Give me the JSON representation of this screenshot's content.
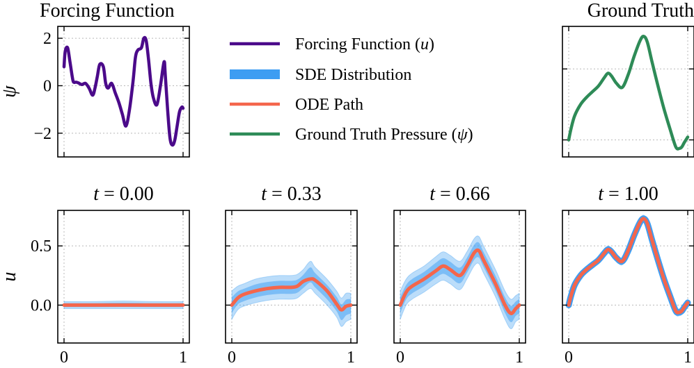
{
  "colors": {
    "forcing": "#4b0a8a",
    "sde": "#3d9df2",
    "ode": "#f4664c",
    "ground_truth": "#2e8b57"
  },
  "chart_data": {
    "type": "line",
    "legend": {
      "placement": "top-center",
      "entries": [
        {
          "label": "Forcing Function (u)",
          "color": "#4b0a8a"
        },
        {
          "label": "SDE Distribution",
          "color": "#3d9df2"
        },
        {
          "label": "ODE Path",
          "color": "#f4664c"
        },
        {
          "label": "Ground Truth Pressure (ψ)",
          "color": "#2e8b57"
        }
      ]
    },
    "panels": [
      {
        "id": "forcing",
        "title": "Forcing Function",
        "ylabel": "ψ",
        "xlim": [
          0,
          1
        ],
        "ylim": [
          -3,
          2.5
        ],
        "yticks": [
          2,
          0,
          -2
        ],
        "ytick_labels": [
          "2",
          "0",
          "−2"
        ],
        "xticks": [
          0,
          1
        ],
        "show_xtick_labels": false,
        "grid": true,
        "series": [
          {
            "kind": "line",
            "x": [
              0,
              0.01,
              0.03,
              0.05,
              0.07,
              0.08,
              0.1,
              0.12,
              0.15,
              0.18,
              0.21,
              0.24,
              0.26,
              0.28,
              0.3,
              0.33,
              0.35,
              0.37,
              0.4,
              0.43,
              0.46,
              0.49,
              0.52,
              0.55,
              0.58,
              0.6,
              0.62,
              0.65,
              0.67,
              0.69,
              0.71,
              0.73,
              0.75,
              0.78,
              0.81,
              0.84,
              0.85,
              0.87,
              0.89,
              0.91,
              0.93,
              0.95,
              0.97,
              0.99,
              1
            ],
            "y": [
              0.8,
              1.45,
              1.6,
              1.0,
              0.35,
              0.15,
              0.15,
              0.12,
              0.05,
              0.1,
              -0.1,
              -0.4,
              -0.1,
              0.4,
              0.9,
              0.8,
              0.1,
              -0.1,
              0.1,
              -0.3,
              -0.7,
              -1.2,
              -1.7,
              -1.0,
              0.2,
              1.2,
              1.5,
              1.6,
              2.0,
              1.9,
              1.1,
              0.1,
              -0.5,
              -0.8,
              0.0,
              1.0,
              0.5,
              -1.0,
              -2.2,
              -2.5,
              -2.3,
              -1.7,
              -1.1,
              -0.9,
              -0.95
            ]
          }
        ]
      },
      {
        "id": "ground_truth",
        "title": "Ground Truth",
        "ylabel": "",
        "xlim": [
          0,
          1
        ],
        "ylim": [
          -0.12,
          0.8
        ],
        "yticks": [
          0,
          0.5
        ],
        "ytick_labels": [],
        "xticks": [
          0,
          1
        ],
        "show_xtick_labels": false,
        "grid": true,
        "series": [
          {
            "kind": "line",
            "x": [
              0,
              0.02,
              0.05,
              0.1,
              0.15,
              0.2,
              0.25,
              0.3,
              0.33,
              0.36,
              0.4,
              0.45,
              0.5,
              0.55,
              0.6,
              0.63,
              0.66,
              0.7,
              0.75,
              0.8,
              0.85,
              0.9,
              0.93,
              0.95,
              0.97,
              1
            ],
            "y": [
              0.0,
              0.08,
              0.17,
              0.25,
              0.3,
              0.34,
              0.38,
              0.44,
              0.47,
              0.45,
              0.4,
              0.37,
              0.46,
              0.59,
              0.7,
              0.73,
              0.69,
              0.55,
              0.38,
              0.22,
              0.08,
              -0.05,
              -0.06,
              -0.05,
              -0.02,
              0.02
            ]
          }
        ]
      },
      {
        "id": "t0",
        "title": "t = 0.00",
        "ylabel": "u",
        "xlim": [
          0,
          1
        ],
        "ylim": [
          -0.32,
          0.8
        ],
        "yticks": [
          0,
          0.5
        ],
        "ytick_labels": [
          "0.0",
          "0.5"
        ],
        "xticks": [
          0,
          1
        ],
        "xtick_labels": [
          "0",
          "1"
        ],
        "grid": true,
        "series": [
          {
            "kind": "band",
            "x": [
              0,
              0.25,
              0.5,
              0.75,
              1
            ],
            "upper": [
              0.03,
              0.03,
              0.035,
              0.03,
              0.03
            ],
            "lower": [
              -0.03,
              -0.03,
              -0.03,
              -0.03,
              -0.03
            ]
          },
          {
            "kind": "line",
            "x": [
              0,
              0.25,
              0.5,
              0.75,
              1
            ],
            "y": [
              0.0,
              0.0,
              0.0,
              0.0,
              0.0
            ]
          }
        ]
      },
      {
        "id": "t1",
        "title": "t = 0.33",
        "ylabel": "",
        "xlim": [
          0,
          1
        ],
        "ylim": [
          -0.32,
          0.8
        ],
        "yticks": [
          0,
          0.5
        ],
        "ytick_labels": [],
        "xticks": [
          0,
          1
        ],
        "xtick_labels": [
          "0",
          "1"
        ],
        "grid": true,
        "series": [
          {
            "kind": "band",
            "x": [
              0,
              0.05,
              0.1,
              0.2,
              0.3,
              0.4,
              0.5,
              0.55,
              0.6,
              0.66,
              0.7,
              0.8,
              0.88,
              0.92,
              0.96,
              1
            ],
            "upper": [
              0.12,
              0.16,
              0.18,
              0.22,
              0.24,
              0.25,
              0.25,
              0.26,
              0.3,
              0.37,
              0.32,
              0.22,
              0.12,
              0.06,
              0.1,
              0.1
            ],
            "lower": [
              -0.12,
              -0.04,
              -0.01,
              0.02,
              0.04,
              0.05,
              0.05,
              0.06,
              0.1,
              0.14,
              0.1,
              0.0,
              -0.1,
              -0.18,
              -0.14,
              -0.12
            ]
          },
          {
            "kind": "line",
            "x": [
              0,
              0.05,
              0.1,
              0.2,
              0.3,
              0.4,
              0.5,
              0.55,
              0.6,
              0.66,
              0.7,
              0.8,
              0.88,
              0.92,
              0.96,
              1
            ],
            "y": [
              0.0,
              0.06,
              0.09,
              0.12,
              0.14,
              0.15,
              0.15,
              0.16,
              0.2,
              0.22,
              0.21,
              0.12,
              0.01,
              -0.04,
              -0.01,
              0.0
            ]
          }
        ]
      },
      {
        "id": "t2",
        "title": "t = 0.66",
        "ylabel": "",
        "xlim": [
          0,
          1
        ],
        "ylim": [
          -0.32,
          0.8
        ],
        "yticks": [
          0,
          0.5
        ],
        "ytick_labels": [],
        "xticks": [
          0,
          1
        ],
        "xtick_labels": [
          "0",
          "1"
        ],
        "grid": true,
        "series": [
          {
            "kind": "band",
            "x": [
              0,
              0.05,
              0.1,
              0.2,
              0.3,
              0.36,
              0.42,
              0.5,
              0.56,
              0.62,
              0.66,
              0.7,
              0.8,
              0.88,
              0.93,
              0.97,
              1
            ],
            "upper": [
              0.12,
              0.22,
              0.27,
              0.33,
              0.41,
              0.45,
              0.42,
              0.37,
              0.45,
              0.56,
              0.58,
              0.5,
              0.3,
              0.12,
              0.05,
              0.08,
              0.1
            ],
            "lower": [
              -0.12,
              0.0,
              0.05,
              0.11,
              0.18,
              0.21,
              0.18,
              0.13,
              0.22,
              0.33,
              0.35,
              0.27,
              0.07,
              -0.12,
              -0.2,
              -0.14,
              -0.12
            ]
          },
          {
            "kind": "line",
            "x": [
              0,
              0.05,
              0.1,
              0.2,
              0.3,
              0.36,
              0.42,
              0.5,
              0.56,
              0.62,
              0.66,
              0.7,
              0.8,
              0.88,
              0.93,
              0.97,
              1
            ],
            "y": [
              0.0,
              0.11,
              0.16,
              0.22,
              0.29,
              0.33,
              0.3,
              0.25,
              0.33,
              0.44,
              0.46,
              0.38,
              0.18,
              0.0,
              -0.07,
              -0.03,
              0.0
            ]
          }
        ]
      },
      {
        "id": "t3",
        "title": "t = 1.00",
        "ylabel": "",
        "xlim": [
          0,
          1
        ],
        "ylim": [
          -0.32,
          0.8
        ],
        "yticks": [
          0,
          0.5
        ],
        "ytick_labels": [],
        "xticks": [
          0,
          1
        ],
        "xtick_labels": [
          "0",
          "1"
        ],
        "grid": true,
        "series": [
          {
            "kind": "band",
            "x": [
              0,
              0.02,
              0.05,
              0.1,
              0.15,
              0.2,
              0.25,
              0.3,
              0.33,
              0.36,
              0.4,
              0.45,
              0.5,
              0.55,
              0.6,
              0.63,
              0.66,
              0.7,
              0.75,
              0.8,
              0.85,
              0.9,
              0.93,
              0.95,
              0.97,
              1
            ],
            "upper": [
              0.02,
              0.11,
              0.2,
              0.28,
              0.33,
              0.37,
              0.41,
              0.47,
              0.5,
              0.48,
              0.43,
              0.4,
              0.49,
              0.62,
              0.73,
              0.76,
              0.72,
              0.58,
              0.41,
              0.25,
              0.11,
              -0.02,
              -0.03,
              -0.02,
              0.01,
              0.05
            ],
            "lower": [
              -0.03,
              0.05,
              0.14,
              0.22,
              0.27,
              0.31,
              0.35,
              0.41,
              0.44,
              0.42,
              0.37,
              0.34,
              0.43,
              0.56,
              0.67,
              0.7,
              0.66,
              0.52,
              0.35,
              0.19,
              0.05,
              -0.08,
              -0.09,
              -0.08,
              -0.05,
              -0.01
            ]
          },
          {
            "kind": "line",
            "x": [
              0,
              0.02,
              0.05,
              0.1,
              0.15,
              0.2,
              0.25,
              0.3,
              0.33,
              0.36,
              0.4,
              0.45,
              0.5,
              0.55,
              0.6,
              0.63,
              0.66,
              0.7,
              0.75,
              0.8,
              0.85,
              0.9,
              0.93,
              0.95,
              0.97,
              1
            ],
            "y": [
              0.0,
              0.08,
              0.17,
              0.25,
              0.3,
              0.34,
              0.38,
              0.44,
              0.47,
              0.45,
              0.4,
              0.37,
              0.46,
              0.59,
              0.7,
              0.73,
              0.69,
              0.55,
              0.38,
              0.22,
              0.08,
              -0.05,
              -0.06,
              -0.05,
              -0.02,
              0.02
            ]
          }
        ]
      }
    ]
  }
}
